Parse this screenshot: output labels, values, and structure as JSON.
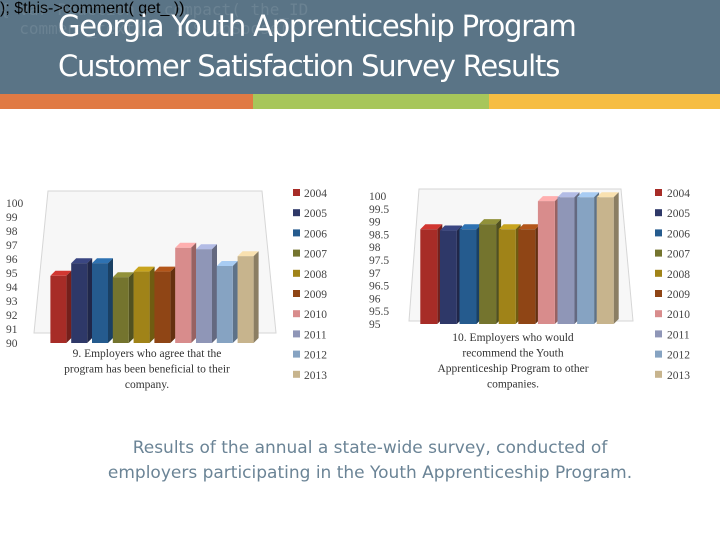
{
  "slide": {
    "title_line1": "Georgia Youth Apprenticeship Program",
    "title_line2": "Customer Satisfaction Survey Results",
    "caption_line1": "Results of the annual a state-wide survey, conducted of",
    "caption_line2": "employers participating in the Youth Apprenticeship Program.",
    "stripe_colors": [
      "#e07a44",
      "#a7c65a",
      "#f6bd43"
    ],
    "header_background": "#5a7486"
  },
  "chart_data": [
    {
      "type": "bar",
      "categories": [
        "2004",
        "2005",
        "2006",
        "2007",
        "2008",
        "2009",
        "2010",
        "2011",
        "2012",
        "2013"
      ],
      "values": [
        94.8,
        95.7,
        95.7,
        94.7,
        95.1,
        95.1,
        96.8,
        96.7,
        95.5,
        96.2
      ],
      "ylim": [
        90,
        100
      ],
      "yticks": [
        "100",
        "99",
        "98",
        "97",
        "96",
        "95",
        "94",
        "93",
        "92",
        "91",
        "90"
      ],
      "title_lines": [
        "9. Employers who agree that the",
        "program has been beneficial to their",
        "company."
      ],
      "legend": [
        "2004",
        "2005",
        "2006",
        "2007",
        "2008",
        "2009",
        "2010",
        "2011",
        "2012",
        "2013"
      ],
      "legend_position": "right",
      "grid": false
    },
    {
      "type": "bar",
      "categories": [
        "2004",
        "2005",
        "2006",
        "2007",
        "2008",
        "2009",
        "2010",
        "2011",
        "2012",
        "2013"
      ],
      "values": [
        98.7,
        98.65,
        98.7,
        98.9,
        98.7,
        98.7,
        99.8,
        99.95,
        99.95,
        99.95
      ],
      "ylim": [
        95,
        100
      ],
      "yticks": [
        "100",
        "99.5",
        "99",
        "98.5",
        "98",
        "97.5",
        "97",
        "96.5",
        "96",
        "95.5",
        "95"
      ],
      "title_lines": [
        "10. Employers who would",
        "recommend the Youth",
        "Apprenticeship Program to other",
        "companies."
      ],
      "legend": [
        "2004",
        "2005",
        "2006",
        "2007",
        "2008",
        "2009",
        "2010",
        "2011",
        "2012",
        "2013"
      ],
      "legend_position": "right",
      "grid": false
    }
  ],
  "series_colors": [
    "#a72c27",
    "#2e3868",
    "#255b8e",
    "#74742e",
    "#a08318",
    "#8f4515",
    "#d88c8c",
    "#8f96b7",
    "#86a3c2",
    "#c7b48d"
  ]
}
